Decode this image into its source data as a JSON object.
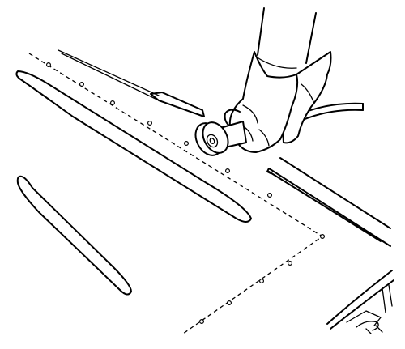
{
  "figure": {
    "subject": "gloved-hand-cutting-wheel-on-roof-panel",
    "line_color": "#000000",
    "background_color": "#ffffff"
  }
}
